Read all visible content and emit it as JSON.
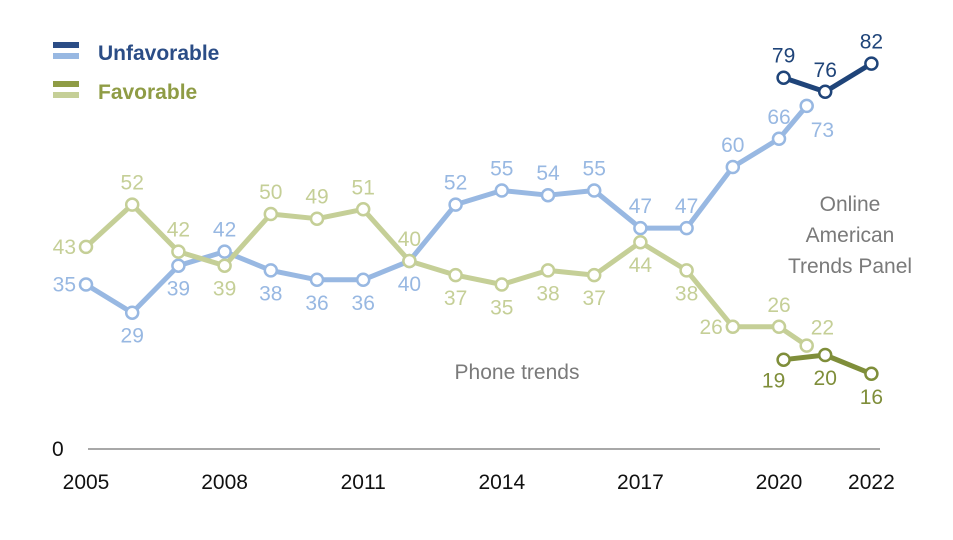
{
  "chart_data": {
    "type": "line",
    "x_ticks": [
      "2005",
      "2008",
      "2011",
      "2014",
      "2017",
      "2020",
      "2022"
    ],
    "y_baseline_label": "0",
    "ylim": [
      0,
      90
    ],
    "grid": false,
    "legend_position": "top-left",
    "colors": {
      "unfavorable_phone": "#98b8e2",
      "unfavorable_online": "#1f4479",
      "favorable_phone": "#c5cf97",
      "favorable_online": "#7f8e3a",
      "axis": "#8c8c8c",
      "note": "#7a7a7a"
    },
    "legend": [
      {
        "label": "Unfavorable",
        "color": "#2b4d86",
        "swatch_top": "#2b4d86",
        "swatch_bottom": "#98b8e2"
      },
      {
        "label": "Favorable",
        "color": "#8f9c45",
        "swatch_top": "#8f9c45",
        "swatch_bottom": "#c5cf97"
      }
    ],
    "series": [
      {
        "name": "Unfavorable",
        "mode": "phone",
        "color": "#98b8e2",
        "points": [
          {
            "x": 2005,
            "y": 35,
            "pos": "left"
          },
          {
            "x": 2006,
            "y": 29,
            "pos": "below"
          },
          {
            "x": 2007,
            "y": 39,
            "pos": "below"
          },
          {
            "x": 2008,
            "y": 42,
            "pos": "above"
          },
          {
            "x": 2009,
            "y": 38,
            "pos": "below"
          },
          {
            "x": 2010,
            "y": 36,
            "pos": "below"
          },
          {
            "x": 2011,
            "y": 36,
            "pos": "below"
          },
          {
            "x": 2012,
            "y": 40,
            "pos": "below"
          },
          {
            "x": 2013,
            "y": 52,
            "pos": "above"
          },
          {
            "x": 2014,
            "y": 55,
            "pos": "above"
          },
          {
            "x": 2015,
            "y": 54,
            "pos": "above"
          },
          {
            "x": 2016,
            "y": 55,
            "pos": "above"
          },
          {
            "x": 2017,
            "y": 47,
            "pos": "above"
          },
          {
            "x": 2018,
            "y": 47,
            "pos": "above"
          },
          {
            "x": 2019,
            "y": 60,
            "pos": "above"
          },
          {
            "x": 2020,
            "y": 66,
            "pos": "above"
          },
          {
            "x": 2020.6,
            "y": 73,
            "pos": "belowright"
          }
        ]
      },
      {
        "name": "Unfavorable",
        "mode": "online",
        "color": "#1f4479",
        "points": [
          {
            "x": 2020.1,
            "y": 79,
            "pos": "above"
          },
          {
            "x": 2021,
            "y": 76,
            "pos": "above"
          },
          {
            "x": 2022,
            "y": 82,
            "pos": "above"
          }
        ]
      },
      {
        "name": "Favorable",
        "mode": "phone",
        "color": "#c5cf97",
        "points": [
          {
            "x": 2005,
            "y": 43,
            "pos": "left"
          },
          {
            "x": 2006,
            "y": 52,
            "pos": "above"
          },
          {
            "x": 2007,
            "y": 42,
            "pos": "above"
          },
          {
            "x": 2008,
            "y": 39,
            "pos": "below"
          },
          {
            "x": 2009,
            "y": 50,
            "pos": "above"
          },
          {
            "x": 2010,
            "y": 49,
            "pos": "above"
          },
          {
            "x": 2011,
            "y": 51,
            "pos": "above"
          },
          {
            "x": 2012,
            "y": 40,
            "pos": "above"
          },
          {
            "x": 2013,
            "y": 37,
            "pos": "below"
          },
          {
            "x": 2014,
            "y": 35,
            "pos": "below"
          },
          {
            "x": 2015,
            "y": 38,
            "pos": "below"
          },
          {
            "x": 2016,
            "y": 37,
            "pos": "below"
          },
          {
            "x": 2017,
            "y": 44,
            "pos": "below"
          },
          {
            "x": 2018,
            "y": 38,
            "pos": "below"
          },
          {
            "x": 2019,
            "y": 26,
            "pos": "left"
          },
          {
            "x": 2020,
            "y": 26,
            "pos": "above"
          },
          {
            "x": 2020.6,
            "y": 22,
            "pos": "aboveright"
          }
        ]
      },
      {
        "name": "Favorable",
        "mode": "online",
        "color": "#7f8e3a",
        "points": [
          {
            "x": 2020.1,
            "y": 19,
            "pos": "belowleft"
          },
          {
            "x": 2021,
            "y": 20,
            "pos": "below"
          },
          {
            "x": 2022,
            "y": 16,
            "pos": "below"
          }
        ]
      }
    ],
    "annotations": [
      {
        "key": "online",
        "lines": [
          "Online",
          "American",
          "Trends Panel"
        ]
      },
      {
        "key": "phone",
        "lines": [
          "Phone trends"
        ]
      }
    ]
  }
}
